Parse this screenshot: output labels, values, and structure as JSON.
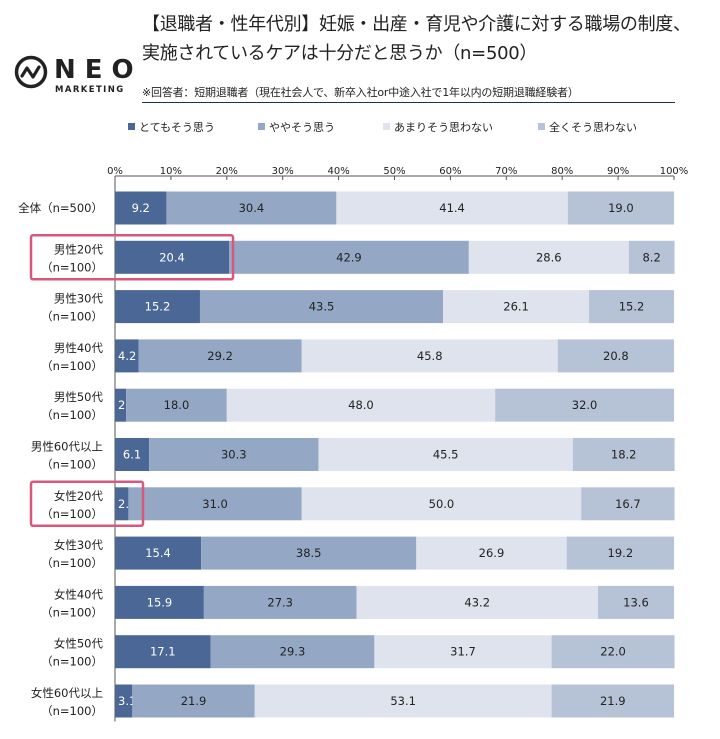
{
  "header": {
    "title_line1": "【退職者・性年代別】妊娠・出産・育児や介護に対する職場の制度、",
    "title_line2": "実施されているケアは十分だと思うか（n=500）",
    "note": "※回答者：短期退職者（現在社会人で、新卒入社or中途入社で1年以内の短期退職経験者）"
  },
  "logo": {
    "word": "NEO",
    "sub": "MARKETING"
  },
  "colors": {
    "series": [
      "#4a6796",
      "#94a8c6",
      "#dfe3ee",
      "#b6c3d7"
    ],
    "label_on_dark": "#ffffff",
    "label_on_light": "#222222",
    "highlight": "#d9577d",
    "rule": "#1e2d5c"
  },
  "chart_data": {
    "type": "bar",
    "orientation": "horizontal",
    "stacked": true,
    "title": "【退職者・性年代別】妊娠・出産・育児や介護に対する職場の制度、実施されているケアは十分だと思うか（n=500）",
    "xlim": [
      0,
      100
    ],
    "x_ticks": [
      "0%",
      "10%",
      "20%",
      "30%",
      "40%",
      "50%",
      "60%",
      "70%",
      "80%",
      "90%",
      "100%"
    ],
    "legend_position": "top",
    "categories": [
      [
        "全体（n=500）"
      ],
      [
        "男性20代",
        "（n=100）"
      ],
      [
        "男性30代",
        "（n=100）"
      ],
      [
        "男性40代",
        "（n=100）"
      ],
      [
        "男性50代",
        "（n=100）"
      ],
      [
        "男性60代以上",
        "（n=100）"
      ],
      [
        "女性20代",
        "（n=100）"
      ],
      [
        "女性30代",
        "（n=100）"
      ],
      [
        "女性40代",
        "（n=100）"
      ],
      [
        "女性50代",
        "（n=100）"
      ],
      [
        "女性60代以上",
        "（n=100）"
      ]
    ],
    "series": [
      {
        "name": "とてもそう思う",
        "values": [
          9.2,
          20.4,
          15.2,
          4.2,
          2.0,
          6.1,
          2.4,
          15.4,
          15.9,
          17.1,
          3.1
        ]
      },
      {
        "name": "ややそう思う",
        "values": [
          30.4,
          42.9,
          43.5,
          29.2,
          18.0,
          30.3,
          31.0,
          38.5,
          27.3,
          29.3,
          21.9
        ]
      },
      {
        "name": "あまりそう思わない",
        "values": [
          41.4,
          28.6,
          26.1,
          45.8,
          48.0,
          45.5,
          50.0,
          26.9,
          43.2,
          31.7,
          53.1
        ]
      },
      {
        "name": "全くそう思わない",
        "values": [
          19.0,
          8.2,
          15.2,
          20.8,
          32.0,
          18.2,
          16.7,
          19.2,
          13.6,
          22.0,
          21.9
        ]
      }
    ],
    "highlighted_categories": [
      1,
      6
    ]
  }
}
